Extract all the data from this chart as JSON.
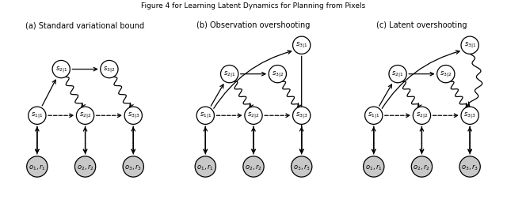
{
  "title": "Figure 4 for Learning Latent Dynamics for Planning from Pixels",
  "panel_labels": [
    "(a) Standard variational bound",
    "(b) Observation overshooting",
    "(c) Latent overshooting"
  ],
  "node_r": 0.055,
  "obs_r": 0.065,
  "bg_color": "#ffffff",
  "node_fill": "#ffffff",
  "obs_fill": "#c8c8c8",
  "edge_color": "#111111",
  "font_size": 6.0,
  "lw": 0.9
}
